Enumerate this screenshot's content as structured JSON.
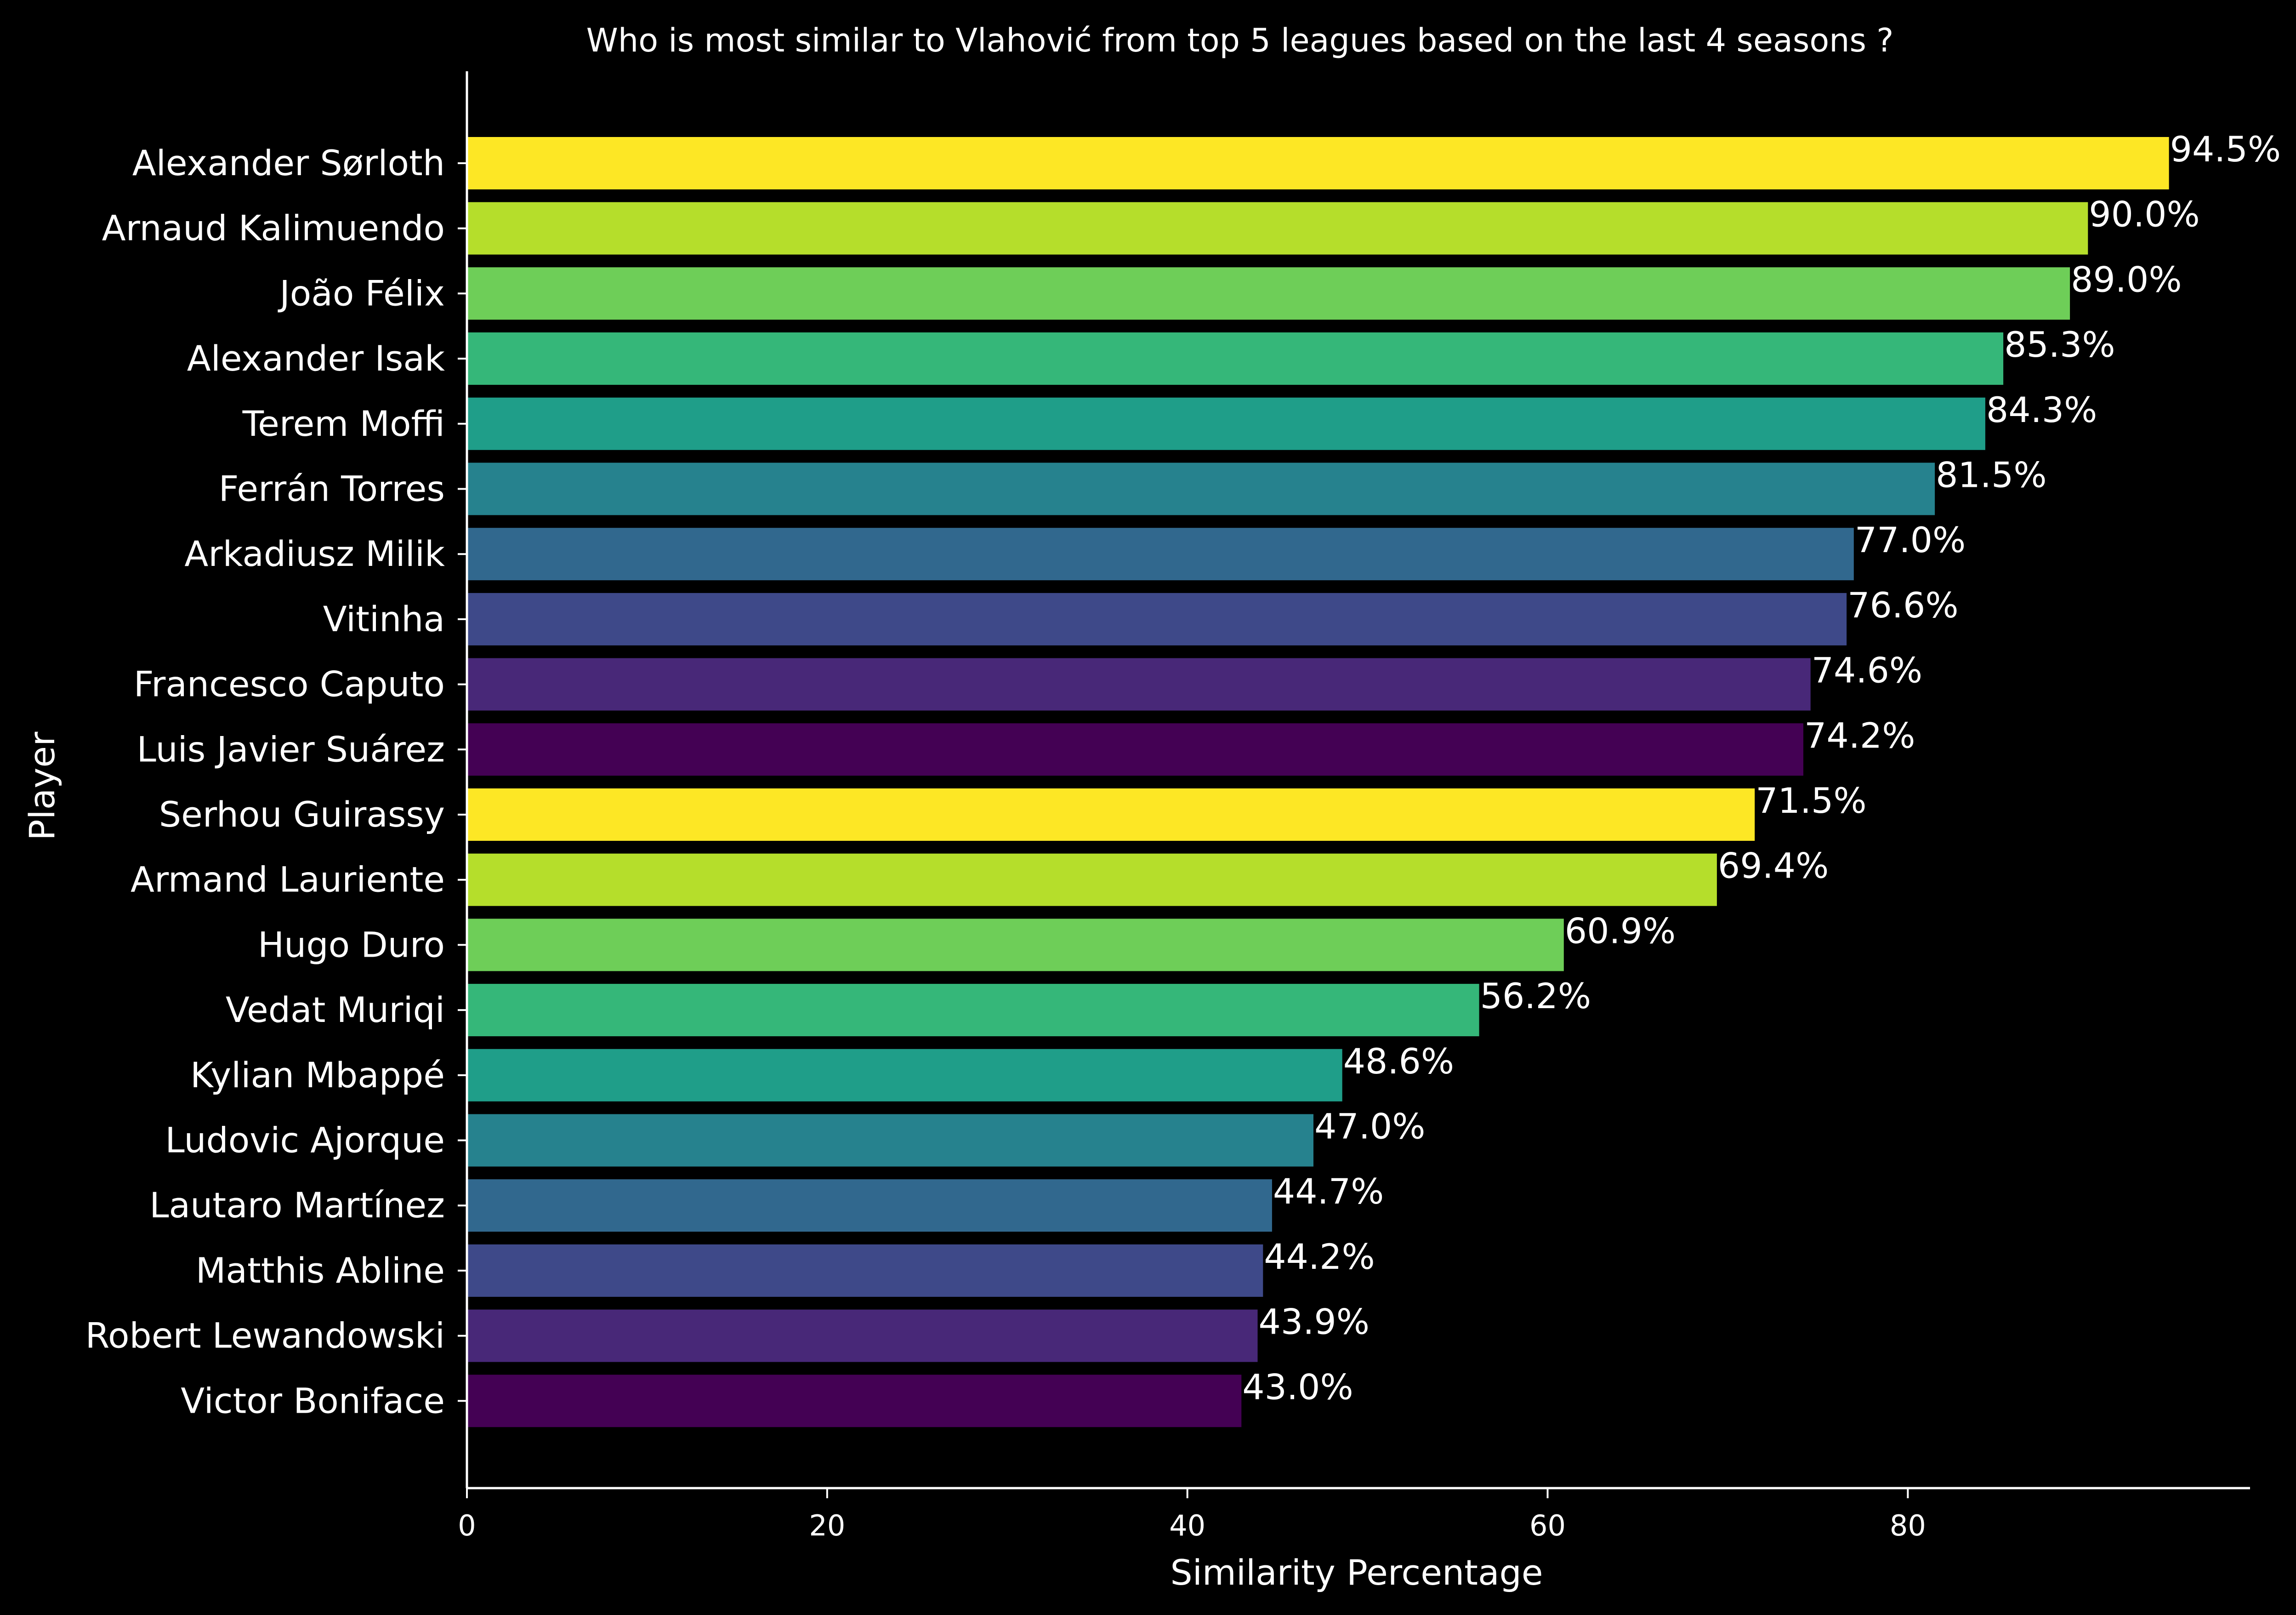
{
  "chart_data": {
    "type": "bar",
    "orientation": "horizontal",
    "title": "Who is most similar to Vlahović from top 5 leagues based on the last 4 seasons ?",
    "xlabel": "Similarity Percentage",
    "ylabel": "Player",
    "xlim": [
      0,
      99
    ],
    "xticks": [
      0,
      20,
      40,
      60,
      80
    ],
    "grid": false,
    "value_label_suffix": "%",
    "categories": [
      "Alexander Sørloth",
      "Arnaud Kalimuendo",
      "João Félix",
      "Alexander Isak",
      "Terem Moffi",
      "Ferrán Torres",
      "Arkadiusz Milik",
      "Vitinha",
      "Francesco Caputo",
      "Luis Javier Suárez",
      "Serhou Guirassy",
      "Armand Lauriente",
      "Hugo Duro",
      "Vedat Muriqi",
      "Kylian Mbappé",
      "Ludovic Ajorque",
      "Lautaro Martínez",
      "Matthis Abline",
      "Robert Lewandowski",
      "Victor Boniface"
    ],
    "values": [
      94.5,
      90.0,
      89.0,
      85.3,
      84.3,
      81.5,
      77.0,
      76.6,
      74.6,
      74.2,
      71.5,
      69.4,
      60.9,
      56.2,
      48.6,
      47.0,
      44.7,
      44.2,
      43.9,
      43.0
    ],
    "value_labels": [
      "94.5%",
      "90.0%",
      "89.0%",
      "85.3%",
      "84.3%",
      "81.5%",
      "77.0%",
      "76.6%",
      "74.6%",
      "74.2%",
      "71.5%",
      "69.4%",
      "60.9%",
      "56.2%",
      "48.6%",
      "47.0%",
      "44.7%",
      "44.2%",
      "43.9%",
      "43.0%"
    ],
    "colors": [
      "#fde725",
      "#b5de2b",
      "#6ece58",
      "#35b779",
      "#1f9e89",
      "#26828e",
      "#31688e",
      "#3e4989",
      "#482878",
      "#440154",
      "#fde725",
      "#b5de2b",
      "#6ece58",
      "#35b779",
      "#1f9e89",
      "#26828e",
      "#31688e",
      "#3e4989",
      "#482878",
      "#440154"
    ],
    "background": "#000000",
    "text_color": "#ffffff"
  }
}
